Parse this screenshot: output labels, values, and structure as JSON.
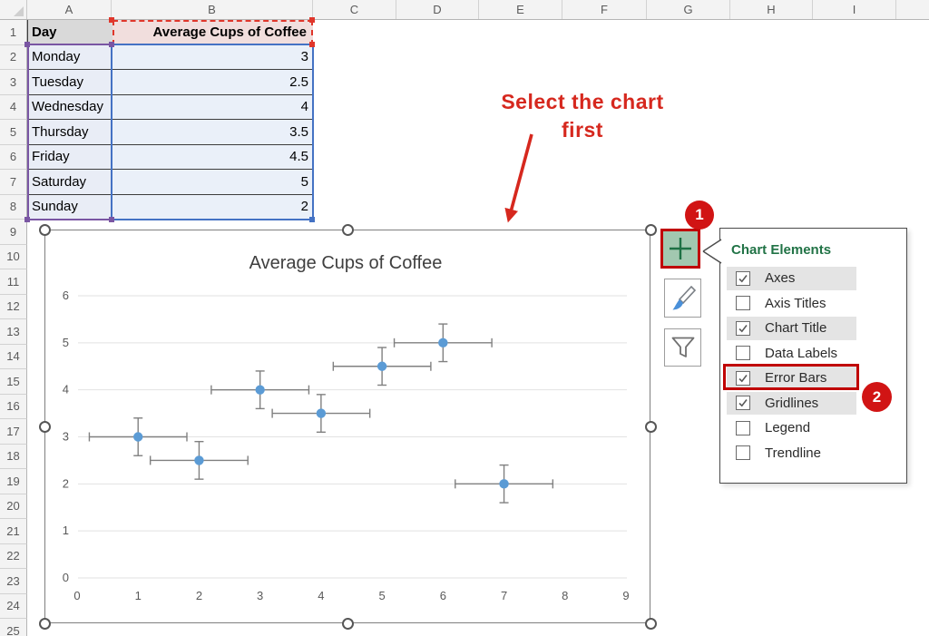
{
  "app": {
    "name": "Excel worksheet with scatter chart and Chart Elements menu"
  },
  "colors": {
    "excel_green": "#217346",
    "annotation_red": "#d6281e",
    "step_badge_red": "#d11414",
    "range_category_purple": "#7a56a3",
    "range_series_name_red": "#e0362b",
    "range_values_blue": "#4472c4",
    "chart_point_blue": "#5b9bd5"
  },
  "spreadsheet": {
    "column_headers": [
      "A",
      "B",
      "C",
      "D",
      "E",
      "F",
      "G",
      "H",
      "I"
    ],
    "row_count": 25,
    "table": {
      "col_a_header": "Day",
      "col_b_header": "Average Cups of Coffee",
      "rows": [
        {
          "day": "Monday",
          "value": "3"
        },
        {
          "day": "Tuesday",
          "value": "2.5"
        },
        {
          "day": "Wednesday",
          "value": "4"
        },
        {
          "day": "Thursday",
          "value": "3.5"
        },
        {
          "day": "Friday",
          "value": "4.5"
        },
        {
          "day": "Saturday",
          "value": "5"
        },
        {
          "day": "Sunday",
          "value": "2"
        }
      ]
    }
  },
  "annotation": {
    "text_line1": "Select the chart",
    "text_line2": "first"
  },
  "callouts": {
    "step1": "1",
    "step2": "2"
  },
  "chart_tool_buttons": [
    {
      "icon": "plus-icon",
      "label": "Chart Elements"
    },
    {
      "icon": "paintbrush-icon",
      "label": "Chart Styles"
    },
    {
      "icon": "funnel-icon",
      "label": "Chart Filters"
    }
  ],
  "chart_elements_menu": {
    "title": "Chart Elements",
    "items": [
      {
        "label": "Axes",
        "checked": true,
        "highlighted_step": false
      },
      {
        "label": "Axis Titles",
        "checked": false,
        "highlighted_step": false
      },
      {
        "label": "Chart Title",
        "checked": true,
        "highlighted_step": false
      },
      {
        "label": "Data Labels",
        "checked": false,
        "highlighted_step": false
      },
      {
        "label": "Error Bars",
        "checked": true,
        "highlighted_step": true
      },
      {
        "label": "Gridlines",
        "checked": true,
        "highlighted_step": false
      },
      {
        "label": "Legend",
        "checked": false,
        "highlighted_step": false
      },
      {
        "label": "Trendline",
        "checked": false,
        "highlighted_step": false
      }
    ]
  },
  "chart_data": {
    "type": "scatter",
    "title": "Average Cups of Coffee",
    "categories": [
      "Monday",
      "Tuesday",
      "Wednesday",
      "Thursday",
      "Friday",
      "Saturday",
      "Sunday"
    ],
    "x": [
      1,
      2,
      3,
      4,
      5,
      6,
      7
    ],
    "y": [
      3,
      2.5,
      4,
      3.5,
      4.5,
      5,
      2
    ],
    "x_error": 0.8,
    "y_error": 0.4,
    "xlim": [
      0,
      9
    ],
    "ylim": [
      0,
      6
    ],
    "x_ticks": [
      0,
      1,
      2,
      3,
      4,
      5,
      6,
      7,
      8,
      9
    ],
    "y_ticks": [
      0,
      1,
      2,
      3,
      4,
      5,
      6
    ],
    "gridlines": "horizontal",
    "legend": "none",
    "point_color": "#5b9bd5",
    "error_bar_color": "#808080"
  }
}
